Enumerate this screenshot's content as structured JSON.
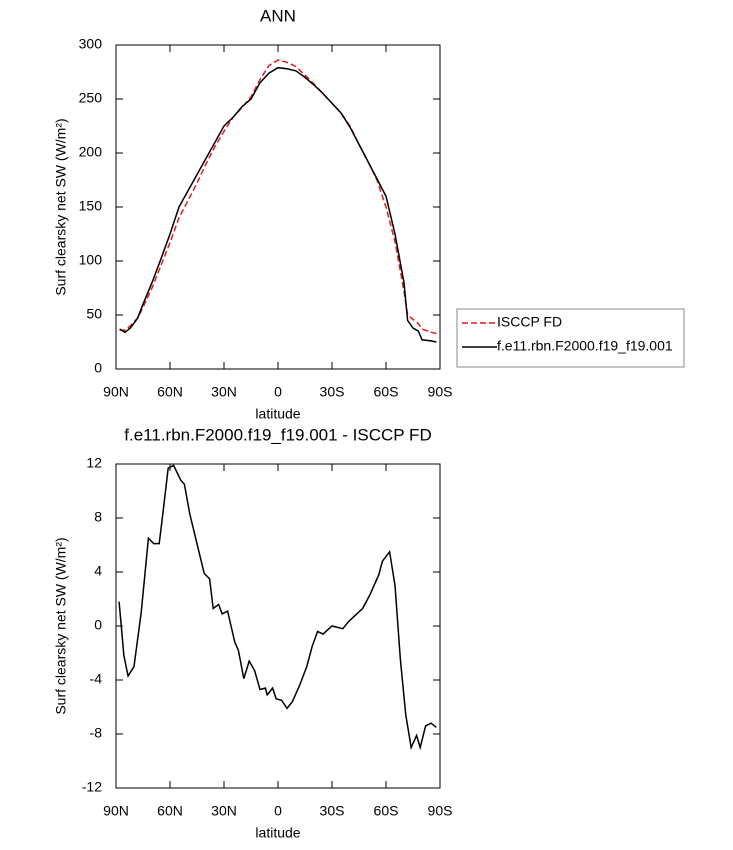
{
  "chart_data": [
    {
      "type": "line",
      "title": "ANN",
      "xlabel": "latitude",
      "ylabel": "Surf clearsky net SW (W/m²)",
      "x": [
        88,
        85,
        82,
        78,
        75,
        70,
        65,
        60,
        55,
        50,
        45,
        40,
        35,
        30,
        25,
        20,
        15,
        10,
        5,
        0,
        -5,
        -10,
        -15,
        -20,
        -25,
        -30,
        -35,
        -40,
        -45,
        -50,
        -55,
        -60,
        -65,
        -70,
        -72,
        -75,
        -78,
        -80,
        -85,
        -88
      ],
      "series": [
        {
          "name": "ISCCP FD",
          "color": "#e41a1c",
          "line_style": "dashed",
          "values": [
            36,
            36,
            40,
            47,
            57,
            75,
            96,
            117,
            140,
            156,
            172,
            190,
            206,
            220,
            233,
            242,
            252,
            268,
            281,
            286,
            284,
            280,
            272,
            264,
            255,
            246,
            237,
            225,
            208,
            192,
            175,
            150,
            118,
            72,
            50,
            46,
            42,
            37,
            34,
            33
          ]
        },
        {
          "name": "f.e11.rbn.F2000.f19_f19.001",
          "color": "#000000",
          "line_style": "solid",
          "values": [
            37,
            34,
            38,
            47,
            60,
            80,
            102,
            125,
            150,
            165,
            180,
            195,
            210,
            225,
            233,
            243,
            250,
            265,
            274,
            279,
            278,
            276,
            270,
            263,
            255,
            246,
            237,
            224,
            208,
            192,
            176,
            160,
            125,
            80,
            45,
            38,
            35,
            27,
            26,
            25
          ]
        }
      ],
      "xlim": [
        90,
        -90
      ],
      "xticks": [
        {
          "value": 90,
          "label": "90N"
        },
        {
          "value": 60,
          "label": "60N"
        },
        {
          "value": 30,
          "label": "30N"
        },
        0,
        {
          "value": -30,
          "label": "30S"
        },
        {
          "value": -60,
          "label": "60S"
        },
        {
          "value": -90,
          "label": "90S"
        }
      ],
      "ylim": [
        0,
        300
      ],
      "yticks": [
        0,
        50,
        100,
        150,
        200,
        250,
        300
      ],
      "legend": "right"
    },
    {
      "type": "line",
      "title": "f.e11.rbn.F2000.f19_f19.001 - ISCCP FD",
      "xlabel": "latitude",
      "ylabel": "Surf clearsky net SW (W/m²)",
      "x": [
        88.3,
        85.6,
        83.3,
        80,
        76,
        72,
        69,
        66,
        64,
        61,
        58,
        54,
        52,
        49,
        47,
        41,
        38,
        36,
        33,
        31,
        28,
        24,
        22,
        19,
        16,
        13,
        10,
        7,
        6,
        3,
        1,
        -2,
        -5,
        -8,
        -12,
        -16,
        -19,
        -22,
        -25,
        -30,
        -36,
        -39,
        -43,
        -47,
        -51,
        -56,
        -58,
        -62,
        -65,
        -68,
        -71,
        -74,
        -77,
        -79,
        -82,
        -85,
        -88
      ],
      "values": [
        1.8,
        -2.2,
        -3.7,
        -3,
        1,
        6.5,
        6.1,
        6.1,
        8.3,
        11.7,
        11.9,
        10.8,
        10.5,
        8.3,
        7.2,
        3.9,
        3.5,
        1.3,
        1.6,
        0.9,
        1.1,
        -1.2,
        -1.8,
        -3.9,
        -2.6,
        -3.3,
        -4.7,
        -4.6,
        -5.1,
        -4.6,
        -5.4,
        -5.5,
        -6.1,
        -5.6,
        -4.4,
        -3,
        -1.5,
        -0.4,
        -0.6,
        0,
        -0.2,
        0.3,
        0.8,
        1.3,
        2.3,
        3.8,
        4.8,
        5.5,
        3,
        -2.5,
        -6.6,
        -9,
        -8.1,
        -9,
        -7.4,
        -7.2,
        -7.5
      ],
      "color": "#000000",
      "xlim": [
        90,
        -90
      ],
      "xticks": [
        {
          "value": 90,
          "label": "90N"
        },
        {
          "value": 60,
          "label": "60N"
        },
        {
          "value": 30,
          "label": "30N"
        },
        0,
        {
          "value": -30,
          "label": "30S"
        },
        {
          "value": -60,
          "label": "60S"
        },
        {
          "value": -90,
          "label": "90S"
        }
      ],
      "ylim": [
        -12,
        12
      ],
      "yticks": [
        -12,
        -8,
        -4,
        0,
        4,
        8,
        12
      ]
    }
  ]
}
